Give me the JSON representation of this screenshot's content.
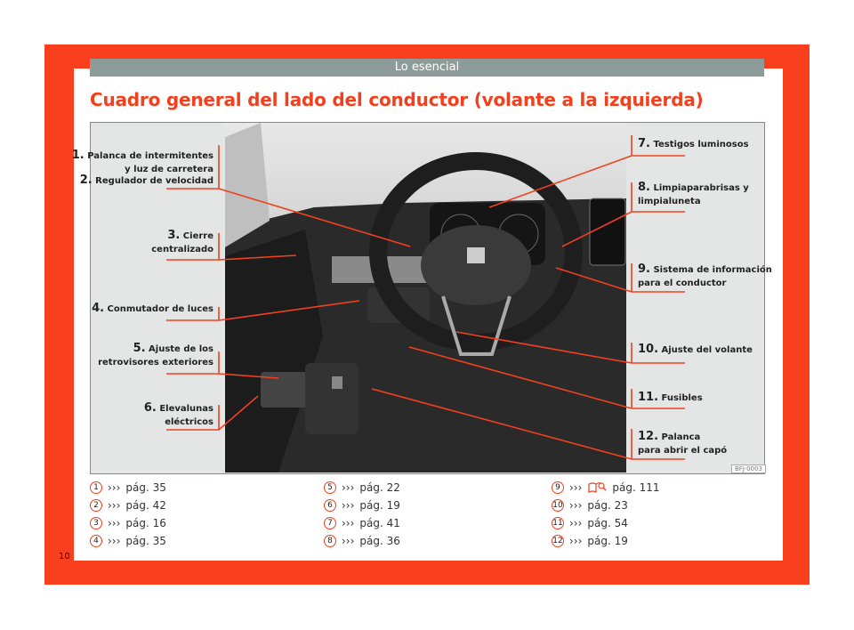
{
  "header": {
    "section": "Lo esencial"
  },
  "title": "Cuadro general del lado del conductor (volante a la izquierda)",
  "figure_code": "BFJ-0003",
  "callouts": [
    {
      "num": "1.",
      "text": "Palanca de intermitentes",
      "text2": "y luz de carretera"
    },
    {
      "num": "2.",
      "text": "Regulador de velocidad"
    },
    {
      "num": "3.",
      "text": "Cierre",
      "text2": "centralizado"
    },
    {
      "num": "4.",
      "text": "Conmutador de luces"
    },
    {
      "num": "5.",
      "text": "Ajuste de los",
      "text2": "retrovisores exteriores"
    },
    {
      "num": "6.",
      "text": "Elevalunas",
      "text2": "eléctricos"
    },
    {
      "num": "7.",
      "text": "Testigos luminosos"
    },
    {
      "num": "8.",
      "text": "Limpiaparabrisas y",
      "text2": "limpialuneta"
    },
    {
      "num": "9.",
      "text": "Sistema de información",
      "text2": "para el conductor"
    },
    {
      "num": "10.",
      "text": "Ajuste del volante"
    },
    {
      "num": "11.",
      "text": "Fusibles"
    },
    {
      "num": "12.",
      "text": "Palanca",
      "text2": "para abrir el capó"
    }
  ],
  "refs": [
    {
      "n": "1",
      "arrow": "›››",
      "page": "pág. 35"
    },
    {
      "n": "2",
      "arrow": "›››",
      "page": "pág. 42"
    },
    {
      "n": "3",
      "arrow": "›››",
      "page": "pág. 16"
    },
    {
      "n": "4",
      "arrow": "›››",
      "page": "pág. 35"
    },
    {
      "n": "5",
      "arrow": "›››",
      "page": "pág. 22"
    },
    {
      "n": "6",
      "arrow": "›››",
      "page": "pág. 19"
    },
    {
      "n": "7",
      "arrow": "›››",
      "page": "pág. 41"
    },
    {
      "n": "8",
      "arrow": "›››",
      "page": "pág. 36"
    },
    {
      "n": "9",
      "arrow": "›››",
      "icon": "book-search-icon",
      "page": "pág. 111"
    },
    {
      "n": "10",
      "arrow": "›››",
      "page": "pág. 23"
    },
    {
      "n": "11",
      "arrow": "›››",
      "page": "pág. 54"
    },
    {
      "n": "12",
      "arrow": "›››",
      "page": "pág. 19"
    }
  ],
  "page_number": "10",
  "colors": {
    "accent": "#fa3f1e",
    "header_bar": "#8e9c99",
    "figure_bg": "#e4e6e6"
  }
}
